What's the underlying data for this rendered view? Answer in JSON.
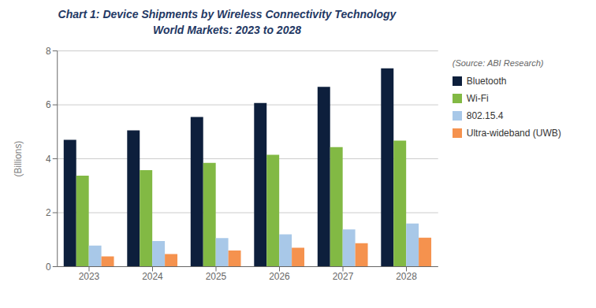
{
  "chart_data": {
    "type": "bar",
    "title": "Chart 1:   Device Shipments by Wireless Connectivity Technology",
    "subtitle": "World Markets: 2023 to 2028",
    "annotations": [
      "(Source: ABI Research)"
    ],
    "categories": [
      "2023",
      "2024",
      "2025",
      "2026",
      "2027",
      "2028"
    ],
    "series": [
      {
        "name": "Bluetooth",
        "color": "#0d1f3c",
        "values": [
          4.7,
          5.05,
          5.55,
          6.07,
          6.67,
          7.35
        ]
      },
      {
        "name": "Wi-Fi",
        "color": "#82b944",
        "values": [
          3.37,
          3.58,
          3.85,
          4.15,
          4.43,
          4.67
        ]
      },
      {
        "name": "802.15.4",
        "color": "#a8c8e8",
        "values": [
          0.78,
          0.95,
          1.06,
          1.2,
          1.38,
          1.6
        ]
      },
      {
        "name": "Ultra-wideband (UWB)",
        "color": "#f5924e",
        "values": [
          0.38,
          0.47,
          0.6,
          0.7,
          0.87,
          1.07
        ]
      }
    ],
    "ylabel": "(Billions)",
    "ylim": [
      0,
      8
    ],
    "yticks": [
      0,
      2,
      4,
      6,
      8
    ],
    "grid": true,
    "legend": "right"
  }
}
